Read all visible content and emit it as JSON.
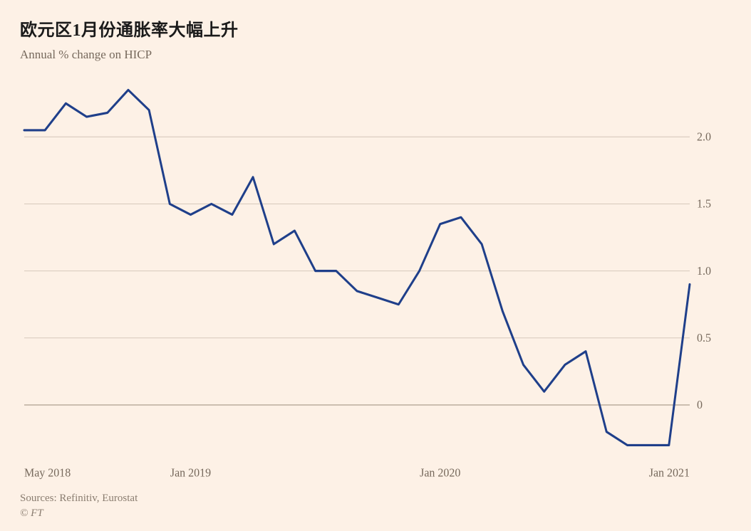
{
  "title": "欧元区1月份通胀率大幅上升",
  "subtitle": "Annual % change on HICP",
  "sources": "Sources: Refinitiv, Eurostat",
  "copyright": "© FT",
  "chart": {
    "type": "line",
    "background_color": "#fdf1e6",
    "line_color": "#1f3f8a",
    "line_width": 3,
    "grid_color": "#d7c9bc",
    "baseline_color": "#a59686",
    "axis_label_color": "#76695c",
    "axis_font_size": 16,
    "title_fontsize": 24,
    "subtitle_fontsize": 17,
    "x_labels": [
      {
        "label": "May 2018",
        "t": 0
      },
      {
        "label": "Jan 2019",
        "t": 8
      },
      {
        "label": "Jan 2020",
        "t": 20
      },
      {
        "label": "Jan 2021",
        "t": 32
      }
    ],
    "y_ticks": [
      0,
      0.5,
      1.0,
      1.5,
      2.0
    ],
    "y_tick_labels": [
      "0",
      "0.5",
      "1.0",
      "1.5",
      "2.0"
    ],
    "ylim": [
      -0.4,
      2.45
    ],
    "x_count": 33,
    "series": [
      2.05,
      2.05,
      2.25,
      2.15,
      2.18,
      2.35,
      2.2,
      1.5,
      1.42,
      1.5,
      1.42,
      1.7,
      1.2,
      1.3,
      1.0,
      1.0,
      0.85,
      0.8,
      0.75,
      1.0,
      1.35,
      1.4,
      1.2,
      0.7,
      0.3,
      0.1,
      0.3,
      0.4,
      -0.2,
      -0.3,
      -0.3,
      -0.3,
      0.9
    ]
  }
}
